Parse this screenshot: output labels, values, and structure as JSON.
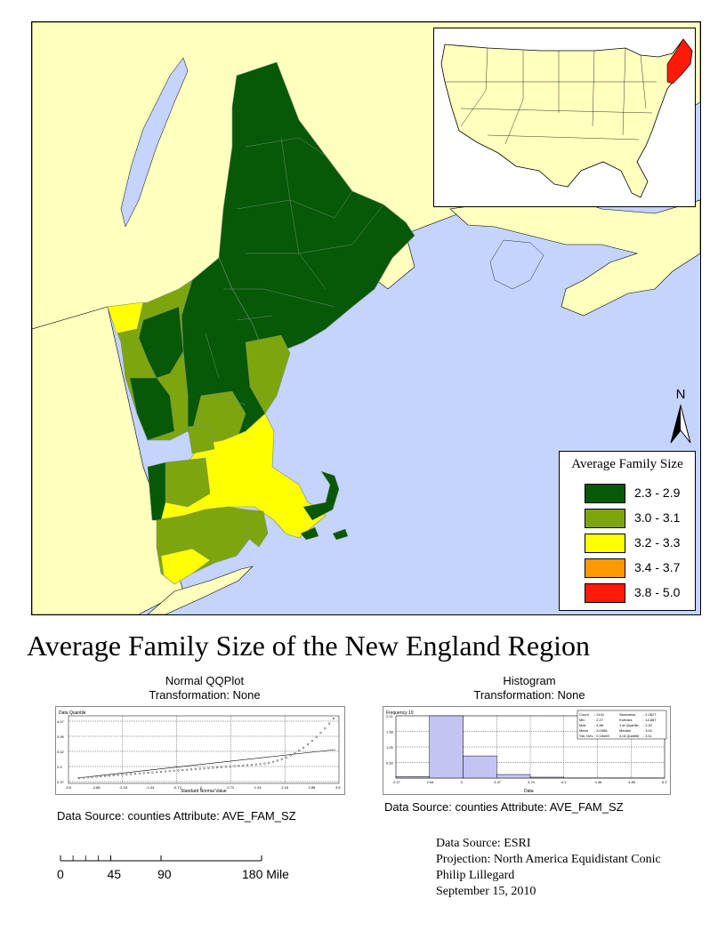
{
  "legend": {
    "title": "Average Family Size",
    "items": [
      {
        "label": "2.3 - 2.9",
        "color": "#065906"
      },
      {
        "label": "3.0 - 3.1",
        "color": "#7da60e"
      },
      {
        "label": "3.2 - 3.3",
        "color": "#ffff00"
      },
      {
        "label": "3.4 - 3.7",
        "color": "#ff9900"
      },
      {
        "label": "3.8 - 5.0",
        "color": "#ff1a0a"
      }
    ]
  },
  "north_arrow": {
    "label": "N"
  },
  "map_title": "Average Family Size of the New England Region",
  "qqplot": {
    "title": "Normal QQPlot",
    "transformation": "Transformation: None",
    "ylabel": "Data Quantile",
    "xlabel": "Standard Normal Value",
    "x_ticks": [
      "-3.6",
      "-2.88",
      "-2.16",
      "-1.44",
      "-0.72",
      "0",
      "0.72",
      "1.44",
      "2.16",
      "2.88",
      "3.6"
    ],
    "y_ticks": [
      "4.47",
      "3.95",
      "3.42",
      "2.9",
      "2.37"
    ],
    "source": "Data Source: counties Attribute: AVE_FAM_SZ"
  },
  "histogram": {
    "title": "Histogram",
    "transformation": "Transformation: None",
    "ylabel": "Frequency  10",
    "xlabel": "Data",
    "x_ticks": [
      "2.27",
      "2.64",
      "3",
      "3.37",
      "3.74",
      "4.1",
      "4.46",
      "4.83",
      "5.2"
    ],
    "y_ticks": [
      "2.11",
      "1.58",
      "1.05",
      "0.53"
    ],
    "stats": [
      [
        "Count",
        ": 2141",
        "Skewness",
        ": 2.2627"
      ],
      [
        "Min",
        ": 2.27",
        "Kurtosis",
        ": 14.867"
      ],
      [
        "Max",
        ": 4.86",
        "1-st Quartile",
        ": 2.92"
      ],
      [
        "Mean",
        ": 3.0368",
        "Median",
        ": 3.01"
      ],
      [
        "Std. Dev.",
        ": 0.18469",
        "3-rd Quartile",
        ": 3.11"
      ]
    ],
    "source": "Data Source: counties Attribute: AVE_FAM_SZ",
    "chart_data": {
      "type": "bar",
      "x": [
        2.27,
        2.64,
        3.0,
        3.37,
        3.74,
        4.1,
        4.46,
        4.83
      ],
      "values": [
        0.05,
        2.11,
        0.75,
        0.12,
        0.03,
        0.005,
        0.005,
        0.005
      ],
      "ylim": [
        0,
        2.11
      ]
    }
  },
  "scalebar": {
    "labels": [
      "0",
      "45",
      "90",
      "180 Miles"
    ],
    "values": [
      0,
      45,
      90,
      180
    ]
  },
  "credits": {
    "line1": "Data Source: ESRI",
    "line2": "Projection: North America Equidistant Conic",
    "line3": "Philip Lillegard",
    "line4": "September 15, 2010"
  }
}
